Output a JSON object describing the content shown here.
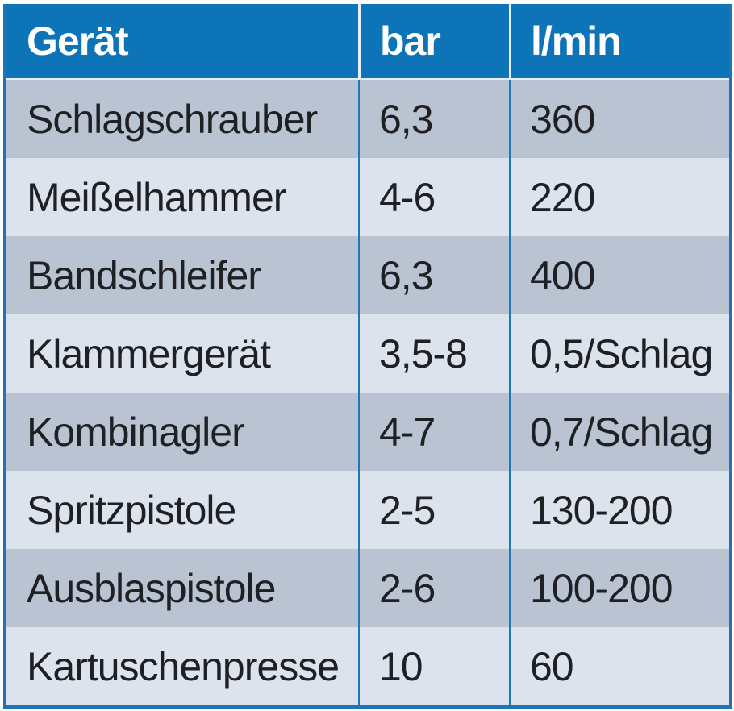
{
  "chart_data": {
    "type": "table",
    "columns": [
      "Gerät",
      "bar",
      "l/min"
    ],
    "rows": [
      [
        "Schlagschrauber",
        "6,3",
        "360"
      ],
      [
        "Meißelhammer",
        "4-6",
        "220"
      ],
      [
        "Bandschleifer",
        "6,3",
        "400"
      ],
      [
        "Klammergerät",
        "3,5-8",
        "0,5/Schlag"
      ],
      [
        "Kombinagler",
        "4-7",
        "0,7/Schlag"
      ],
      [
        "Spritzpistole",
        "2-5",
        "130-200"
      ],
      [
        "Ausblaspistole",
        "2-6",
        "100-200"
      ],
      [
        "Kartuschenpresse",
        "10",
        "60"
      ]
    ]
  },
  "colors": {
    "header_background": "#0e74b8",
    "header_text": "#ffffff",
    "row_dark": "#b9c3d2",
    "row_light": "#dde3ed",
    "border_blue": "#1e74b4",
    "separator_blue": "#2077b8",
    "body_text": "#1f2023"
  }
}
